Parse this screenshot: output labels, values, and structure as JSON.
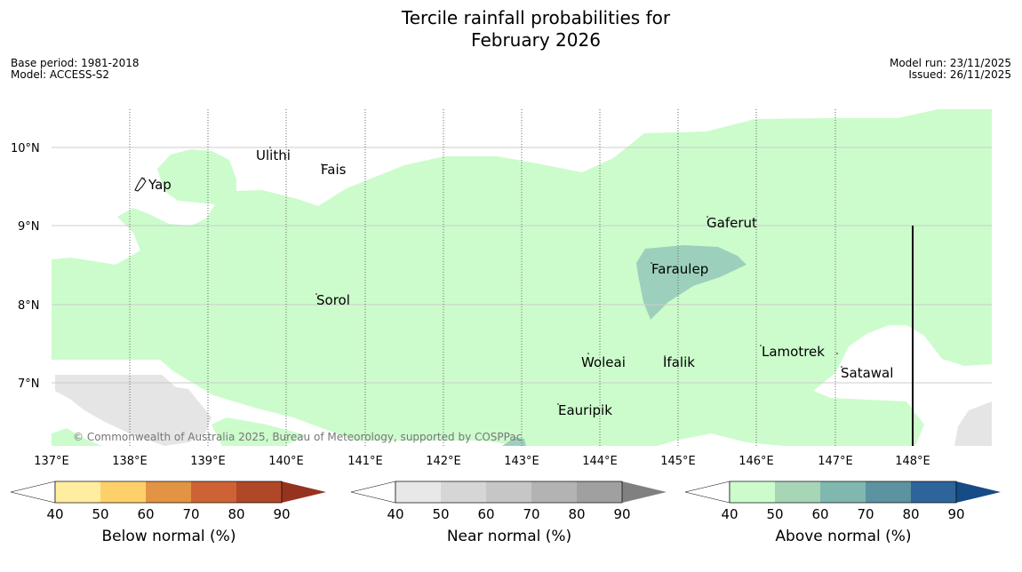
{
  "header": {
    "title_line1": "Tercile rainfall probabilities for",
    "title_line2": "February 2026",
    "base_period": "Base period: 1981-2018",
    "model": "Model: ACCESS-S2",
    "model_run": "Model run: 23/11/2025",
    "issued": "Issued: 26/11/2025"
  },
  "map": {
    "lat_labels": [
      "10°N",
      "9°N",
      "8°N",
      "7°N"
    ],
    "lon_labels": [
      "137°E",
      "138°E",
      "139°E",
      "140°E",
      "141°E",
      "142°E",
      "143°E",
      "144°E",
      "145°E",
      "146°E",
      "147°E",
      "148°E"
    ],
    "places": [
      "Yap",
      "Ulithi",
      "Fais",
      "Sorol",
      "Gaferut",
      "Faraulep",
      "Woleai",
      "Ifalik",
      "Eauripik",
      "Lamotrek",
      "Satawal"
    ],
    "copyright": "© Commonwealth of Australia 2025, Bureau of Meteorology, supported by COSPPac",
    "colors": {
      "above_40_50": "#ccfccc",
      "above_60_70": "#9dd0bc",
      "near_40_50": "#e5e5e5",
      "ocean": "#ffffff"
    }
  },
  "colorbars": [
    {
      "label": "Below normal (%)",
      "ticks": [
        "40",
        "50",
        "60",
        "70",
        "80",
        "90"
      ],
      "colors": [
        "#ffffff",
        "#ffeda0",
        "#fed06a",
        "#e29444",
        "#cf6234",
        "#b04827",
        "#96331f"
      ]
    },
    {
      "label": "Near normal (%)",
      "ticks": [
        "40",
        "50",
        "60",
        "70",
        "80",
        "90"
      ],
      "colors": [
        "#ffffff",
        "#e8e8e8",
        "#d6d6d6",
        "#c6c6c6",
        "#b3b3b3",
        "#a0a0a0",
        "#808080"
      ]
    },
    {
      "label": "Above normal (%)",
      "ticks": [
        "40",
        "50",
        "60",
        "70",
        "80",
        "90"
      ],
      "colors": [
        "#ffffff",
        "#ccfccc",
        "#a6d6b6",
        "#80b8b0",
        "#5b93a0",
        "#2d6499",
        "#164c85"
      ]
    }
  ]
}
